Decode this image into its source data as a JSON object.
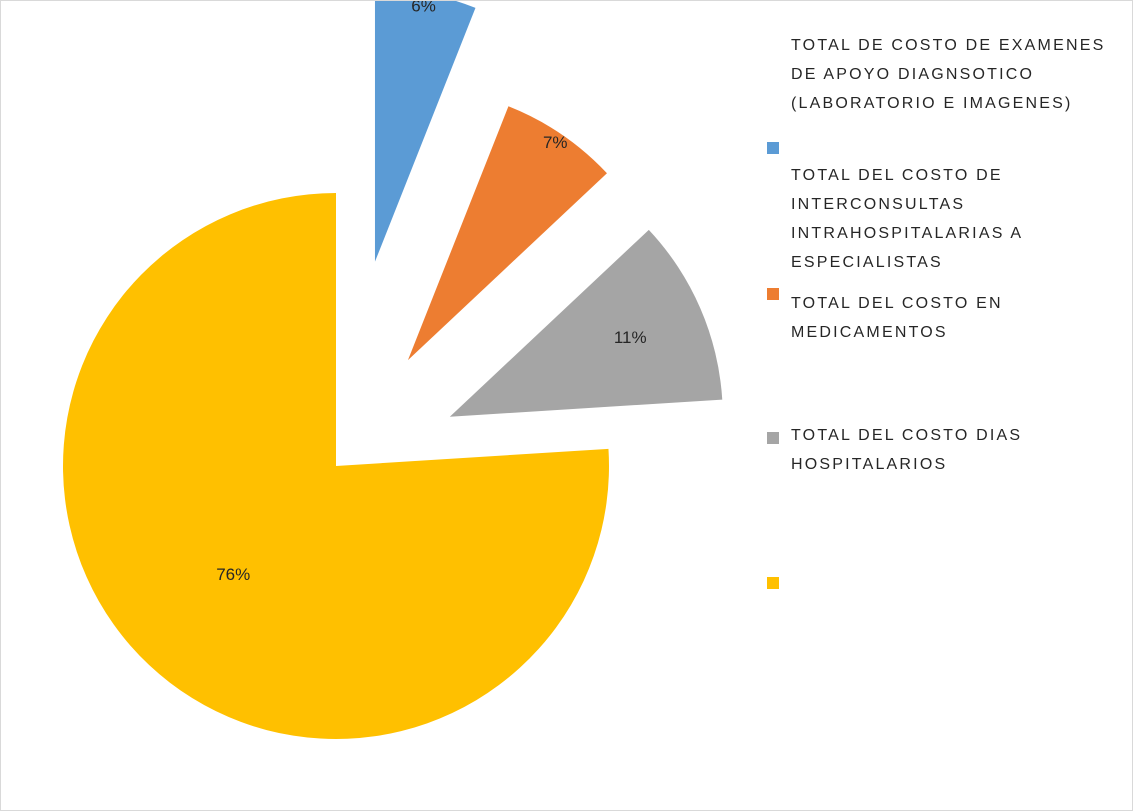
{
  "chart_data": {
    "type": "pie",
    "exploded": true,
    "slices": [
      {
        "label": "TOTAL DE COSTO DE EXAMENES DE APOYO DIAGNSOTICO (LABORATORIO E IMAGENES)",
        "value": 6,
        "data_label": "6%",
        "color": "#5b9bd5"
      },
      {
        "label": "TOTAL DEL COSTO DE INTERCONSULTAS INTRAHOSPITALARIAS A ESPECIALISTAS",
        "value": 7,
        "data_label": "7%",
        "color": "#ed7d31"
      },
      {
        "label": "TOTAL DEL COSTO EN MEDICAMENTOS",
        "value": 11,
        "data_label": "11%",
        "color": "#a5a5a5"
      },
      {
        "label": "TOTAL DEL COSTO DIAS HOSPITALARIOS",
        "value": 76,
        "data_label": "76%",
        "color": "#ffc000"
      }
    ],
    "legend_position": "right",
    "legend": [
      {
        "text": "TOTAL DE COSTO DE EXAMENES DE APOYO DIAGNSOTICO (LABORATORIO E IMAGENES)",
        "color": "#5b9bd5"
      },
      {
        "text": "TOTAL DEL COSTO DE INTERCONSULTAS INTRAHOSPITALARIAS A ESPECIALISTAS",
        "color": "#ed7d31"
      },
      {
        "text": "TOTAL DEL COSTO EN MEDICAMENTOS",
        "color": "#a5a5a5"
      },
      {
        "text": "TOTAL DEL COSTO DIAS HOSPITALARIOS",
        "color": "#ffc000"
      },
      {
        "text": "",
        "color": "#ffc000"
      }
    ]
  }
}
